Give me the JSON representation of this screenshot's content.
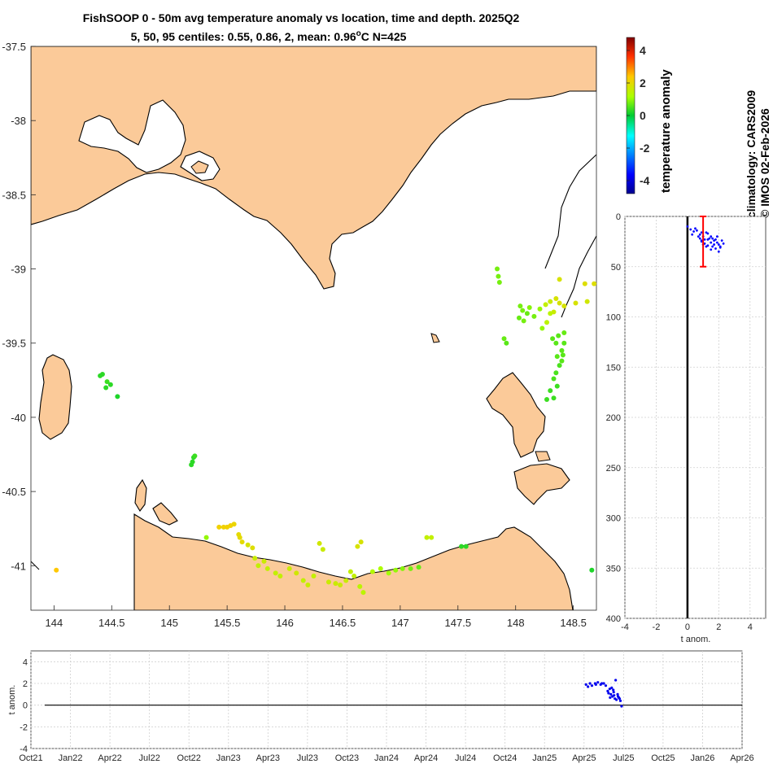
{
  "title": {
    "line1": "FishSOOP 0 - 50m avg temperature anomaly vs location, time and depth. 2025Q2",
    "line2_prefix": "5, 50, 95 centiles: 0.55, 0.86, 2, mean: 0.96",
    "line2_deg": "o",
    "line2_suffix": "C N=425"
  },
  "side_text": {
    "climatology": "climatology: CARS2009",
    "credit": "© IMOS 02-Feb-2026"
  },
  "colors": {
    "land": "#fbca99",
    "coast": "#000000",
    "profile_dots": "#0000ff",
    "mean_bar": "#ff0000",
    "time_dots": "#0000ee"
  },
  "colorbar": {
    "label": "temperature anomaly",
    "ticks": [
      "4",
      "2",
      "0",
      "-2",
      "-4"
    ],
    "range": [
      -4.8,
      4.8
    ]
  },
  "chart_data": [
    {
      "type": "scatter",
      "name": "map",
      "xlim": [
        143.8,
        148.7
      ],
      "ylim": [
        -41.3,
        -37.5
      ],
      "x_ticks": [
        "144",
        "144.5",
        "145",
        "145.5",
        "146",
        "146.5",
        "147",
        "147.5",
        "148",
        "148.5"
      ],
      "y_ticks": [
        "-37.5",
        "-38",
        "-38.5",
        "-39",
        "-39.5",
        "-40",
        "-40.5",
        "-41"
      ],
      "color_variable": "temperature anomaly",
      "points": [
        [
          144.4,
          -39.72,
          0.3
        ],
        [
          144.42,
          -39.71,
          0.3
        ],
        [
          144.46,
          -39.76,
          0.4
        ],
        [
          144.49,
          -39.78,
          0.3
        ],
        [
          144.45,
          -39.8,
          0.3
        ],
        [
          144.55,
          -39.86,
          0.2
        ],
        [
          145.21,
          -40.27,
          0.3
        ],
        [
          145.2,
          -40.3,
          0.3
        ],
        [
          145.19,
          -40.32,
          0.3
        ],
        [
          145.22,
          -40.26,
          0.4
        ],
        [
          145.32,
          -40.81,
          1.0
        ],
        [
          145.43,
          -40.74,
          2.2
        ],
        [
          145.47,
          -40.74,
          2.2
        ],
        [
          145.5,
          -40.74,
          2.2
        ],
        [
          145.53,
          -40.73,
          2.2
        ],
        [
          145.56,
          -40.72,
          2.1
        ],
        [
          145.61,
          -40.81,
          2.0
        ],
        [
          145.63,
          -40.84,
          2.0
        ],
        [
          145.68,
          -40.86,
          1.8
        ],
        [
          145.72,
          -40.88,
          1.9
        ],
        [
          145.6,
          -40.79,
          2.0
        ],
        [
          145.74,
          -40.95,
          1.6
        ],
        [
          145.77,
          -41.0,
          1.5
        ],
        [
          145.82,
          -40.97,
          1.6
        ],
        [
          145.85,
          -41.02,
          1.5
        ],
        [
          145.92,
          -41.05,
          1.5
        ],
        [
          145.96,
          -41.07,
          1.5
        ],
        [
          146.04,
          -41.02,
          1.6
        ],
        [
          146.1,
          -41.05,
          1.7
        ],
        [
          146.16,
          -41.1,
          1.5
        ],
        [
          146.2,
          -41.13,
          1.6
        ],
        [
          146.25,
          -41.07,
          1.5
        ],
        [
          146.3,
          -40.85,
          1.7
        ],
        [
          146.33,
          -40.89,
          1.6
        ],
        [
          146.38,
          -41.11,
          1.6
        ],
        [
          146.44,
          -41.12,
          1.6
        ],
        [
          146.48,
          -41.13,
          1.6
        ],
        [
          146.53,
          -41.1,
          1.6
        ],
        [
          146.57,
          -41.04,
          1.5
        ],
        [
          146.63,
          -40.87,
          1.8
        ],
        [
          146.66,
          -40.84,
          1.8
        ],
        [
          146.6,
          -41.07,
          1.5
        ],
        [
          146.65,
          -41.14,
          1.4
        ],
        [
          146.68,
          -41.18,
          1.4
        ],
        [
          146.76,
          -41.04,
          1.3
        ],
        [
          146.83,
          -41.02,
          1.2
        ],
        [
          146.9,
          -41.05,
          1.1
        ],
        [
          146.96,
          -41.03,
          1.0
        ],
        [
          147.02,
          -41.02,
          0.9
        ],
        [
          147.09,
          -41.02,
          0.8
        ],
        [
          147.16,
          -41.01,
          0.7
        ],
        [
          147.23,
          -40.81,
          1.5
        ],
        [
          147.27,
          -40.81,
          1.5
        ],
        [
          147.53,
          -40.87,
          0.3
        ],
        [
          147.57,
          -40.87,
          0.3
        ],
        [
          147.84,
          -39.0,
          0.8
        ],
        [
          147.85,
          -39.05,
          0.8
        ],
        [
          147.86,
          -39.09,
          0.8
        ],
        [
          147.9,
          -39.47,
          0.7
        ],
        [
          147.92,
          -39.5,
          0.6
        ],
        [
          148.04,
          -39.25,
          0.8
        ],
        [
          148.06,
          -39.28,
          0.8
        ],
        [
          148.1,
          -39.3,
          0.7
        ],
        [
          148.03,
          -39.33,
          0.7
        ],
        [
          148.07,
          -39.35,
          0.8
        ],
        [
          148.12,
          -39.26,
          0.9
        ],
        [
          148.16,
          -39.32,
          0.8
        ],
        [
          148.21,
          -39.27,
          1.0
        ],
        [
          148.23,
          -39.4,
          1.0
        ],
        [
          148.26,
          -39.24,
          1.5
        ],
        [
          148.3,
          -39.22,
          1.6
        ],
        [
          148.33,
          -39.29,
          1.6
        ],
        [
          148.27,
          -39.36,
          1.4
        ],
        [
          148.35,
          -39.2,
          1.8
        ],
        [
          148.38,
          -39.23,
          1.8
        ],
        [
          148.32,
          -39.47,
          0.6
        ],
        [
          148.35,
          -39.5,
          0.6
        ],
        [
          148.37,
          -39.45,
          0.6
        ],
        [
          148.38,
          -39.65,
          0.5
        ],
        [
          148.33,
          -39.74,
          0.5
        ],
        [
          148.36,
          -39.79,
          0.4
        ],
        [
          148.3,
          -39.82,
          0.4
        ],
        [
          148.33,
          -39.87,
          0.4
        ],
        [
          148.27,
          -39.88,
          0.4
        ],
        [
          148.4,
          -39.55,
          0.6
        ],
        [
          148.42,
          -39.5,
          0.6
        ],
        [
          148.41,
          -39.58,
          0.6
        ],
        [
          148.36,
          -39.59,
          0.6
        ],
        [
          148.38,
          -39.07,
          1.8
        ],
        [
          148.6,
          -39.1,
          1.9
        ],
        [
          148.62,
          -39.22,
          1.7
        ],
        [
          148.52,
          -39.23,
          1.8
        ],
        [
          148.68,
          -39.1,
          1.9
        ],
        [
          148.66,
          -41.03,
          0.2
        ],
        [
          144.02,
          -41.03,
          2.4
        ],
        [
          148.42,
          -39.25,
          1.8
        ],
        [
          148.3,
          -39.3,
          1.4
        ],
        [
          148.42,
          -39.43,
          0.7
        ],
        [
          148.4,
          -39.62,
          0.6
        ],
        [
          148.35,
          -39.7,
          0.5
        ]
      ]
    },
    {
      "type": "scatter",
      "name": "depth_profile",
      "xlabel": "t anom.",
      "xlim": [
        -4,
        5
      ],
      "ylim": [
        0,
        400
      ],
      "x_ticks": [
        "-4",
        "-2",
        "0",
        "2",
        "4"
      ],
      "y_ticks": [
        "0",
        "50",
        "100",
        "150",
        "200",
        "250",
        "300",
        "350",
        "400"
      ],
      "mean_bar": {
        "x": 1,
        "y_min": 0,
        "y_max": 50
      },
      "zero_line": 0,
      "points": [
        [
          0.0,
          10
        ],
        [
          0.2,
          13
        ],
        [
          0.4,
          15
        ],
        [
          0.3,
          18
        ],
        [
          0.6,
          14
        ],
        [
          0.7,
          20
        ],
        [
          0.8,
          22
        ],
        [
          0.9,
          25
        ],
        [
          1.1,
          27
        ],
        [
          1.3,
          23
        ],
        [
          1.5,
          20
        ],
        [
          1.7,
          24
        ],
        [
          1.9,
          26
        ],
        [
          2.0,
          28
        ],
        [
          2.1,
          30
        ],
        [
          1.6,
          30
        ],
        [
          1.2,
          30
        ],
        [
          0.8,
          18
        ],
        [
          0.9,
          16
        ],
        [
          1.0,
          20
        ],
        [
          1.3,
          17
        ],
        [
          1.5,
          26
        ],
        [
          1.7,
          28
        ],
        [
          1.8,
          32
        ],
        [
          2.0,
          35
        ],
        [
          1.4,
          22
        ],
        [
          1.1,
          23
        ],
        [
          0.9,
          24
        ],
        [
          1.6,
          22
        ],
        [
          2.2,
          24
        ],
        [
          1.9,
          20
        ],
        [
          2.3,
          27
        ],
        [
          1.2,
          16
        ],
        [
          0.5,
          12
        ],
        [
          1.0,
          28
        ],
        [
          1.8,
          23
        ],
        [
          2.1,
          31
        ],
        [
          1.5,
          33
        ],
        [
          1.3,
          29
        ]
      ]
    },
    {
      "type": "scatter",
      "name": "time_series",
      "ylabel": "t anom.",
      "ylim": [
        -4,
        5
      ],
      "y_ticks": [
        "4",
        "2",
        "0",
        "-2",
        "-4"
      ],
      "x_ticks": [
        "Oct21",
        "Jan22",
        "Apr22",
        "Jul22",
        "Oct22",
        "Jan23",
        "Apr23",
        "Jul23",
        "Oct23",
        "Jan24",
        "Apr24",
        "Jul24",
        "Oct24",
        "Jan25",
        "Apr25",
        "Jul25",
        "Oct25",
        "Jan26",
        "Apr26"
      ],
      "x_tick_index_start": 0,
      "points": [
        [
          14.05,
          1.9
        ],
        [
          14.1,
          1.7
        ],
        [
          14.15,
          2.0
        ],
        [
          14.2,
          1.8
        ],
        [
          14.28,
          2.0
        ],
        [
          14.35,
          2.1
        ],
        [
          14.42,
          1.9
        ],
        [
          14.5,
          2.0
        ],
        [
          14.55,
          1.8
        ],
        [
          14.6,
          1.3
        ],
        [
          14.65,
          1.5
        ],
        [
          14.68,
          1.0
        ],
        [
          14.72,
          0.8
        ],
        [
          14.75,
          1.2
        ],
        [
          14.78,
          0.6
        ],
        [
          14.8,
          2.3
        ],
        [
          14.82,
          0.5
        ],
        [
          14.85,
          1.0
        ],
        [
          14.88,
          0.7
        ],
        [
          14.92,
          0.4
        ],
        [
          14.95,
          -0.1
        ],
        [
          14.7,
          1.6
        ],
        [
          14.62,
          1.1
        ],
        [
          14.76,
          0.9
        ],
        [
          14.86,
          0.8
        ],
        [
          14.3,
          1.9
        ],
        [
          14.45,
          2.0
        ],
        [
          14.9,
          0.6
        ],
        [
          14.74,
          1.4
        ],
        [
          14.66,
          0.7
        ]
      ]
    }
  ]
}
